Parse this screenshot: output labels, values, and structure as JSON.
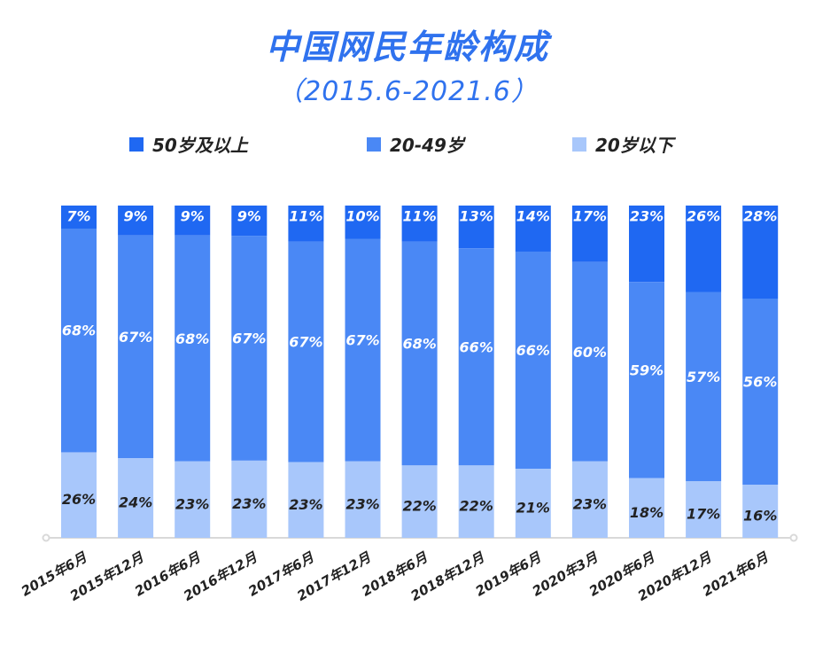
{
  "colors": {
    "title": "#2f72ee",
    "age_50_plus": "#1f68f2",
    "age_20_49": "#4a88f5",
    "age_under_20": "#a8c7fb",
    "axis": "#d9d9d9"
  },
  "chart_data": {
    "type": "bar",
    "stacked": true,
    "normalized_percent": true,
    "title": "中国网民年龄构成",
    "subtitle": "（2015.6-2021.6）",
    "legend_position": "top",
    "legend": [
      "50岁及以上",
      "20-49岁",
      "20岁以下"
    ],
    "categories": [
      "2015年6月",
      "2015年12月",
      "2016年6月",
      "2016年12月",
      "2017年6月",
      "2017年12月",
      "2018年6月",
      "2018年12月",
      "2019年6月",
      "2020年3月",
      "2020年6月",
      "2020年12月",
      "2021年6月"
    ],
    "series": [
      {
        "name": "20岁以下",
        "values": [
          26,
          24,
          23,
          23,
          23,
          23,
          22,
          22,
          21,
          23,
          18,
          17,
          16
        ]
      },
      {
        "name": "20-49岁",
        "values": [
          68,
          67,
          68,
          67,
          67,
          67,
          68,
          66,
          66,
          60,
          59,
          57,
          56
        ]
      },
      {
        "name": "50岁及以上",
        "values": [
          7,
          9,
          9,
          9,
          11,
          10,
          11,
          13,
          14,
          17,
          23,
          26,
          28
        ]
      }
    ],
    "value_suffix": "%"
  }
}
